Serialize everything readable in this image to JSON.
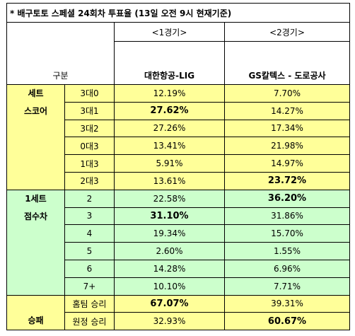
{
  "title": "* 배구토토 스페셜 24회차 투표율 (13일 오전 9시 현재기준)",
  "header": {
    "match1": "<1경기>",
    "match2": "<2경기>",
    "label": "구분",
    "team1": "대한항공-LIG",
    "team2": "GS칼텍스 - 도로공사"
  },
  "groups": [
    {
      "label": [
        "세트",
        "스코어"
      ],
      "align": "top",
      "color": "#ffff99",
      "rows": [
        {
          "label": "3대0",
          "v1": "12.19%",
          "v2": "7.70%"
        },
        {
          "label": "3대1",
          "v1": "27.62%",
          "v2": "14.27%",
          "emphasis": "v1"
        },
        {
          "label": "3대2",
          "v1": "27.26%",
          "v2": "17.34%"
        },
        {
          "label": "0대3",
          "v1": "13.41%",
          "v2": "21.98%"
        },
        {
          "label": "1대3",
          "v1": "5.91%",
          "v2": "14.97%"
        },
        {
          "label": "2대3",
          "v1": "13.61%",
          "v2": "23.72%",
          "emphasis": "v2"
        }
      ]
    },
    {
      "label": [
        "1세트",
        "점수차"
      ],
      "align": "top",
      "color": "#ccffcc",
      "rows": [
        {
          "label": "2",
          "v1": "22.58%",
          "v2": "36.20%",
          "emphasis": "v2"
        },
        {
          "label": "3",
          "v1": "31.10%",
          "v2": "31.86%",
          "emphasis": "v1"
        },
        {
          "label": "4",
          "v1": "19.34%",
          "v2": "15.70%"
        },
        {
          "label": "5",
          "v1": "2.60%",
          "v2": "1.55%"
        },
        {
          "label": "6",
          "v1": "14.28%",
          "v2": "6.96%"
        },
        {
          "label": "7+",
          "v1": "10.10%",
          "v2": "7.71%"
        }
      ]
    },
    {
      "label": [
        "승패"
      ],
      "align": "bottom",
      "color": "#ffff99",
      "rows": [
        {
          "label": "홈팀 승리",
          "v1": "67.07%",
          "v2": "39.31%",
          "emphasis": "v1"
        },
        {
          "label": "원정 승리",
          "v1": "32.93%",
          "v2": "60.67%",
          "emphasis": "v2"
        }
      ]
    }
  ]
}
